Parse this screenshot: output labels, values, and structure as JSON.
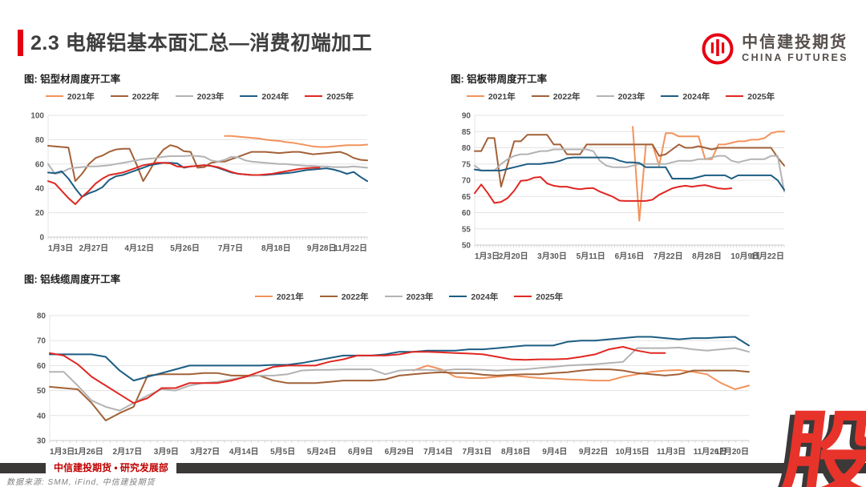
{
  "header": {
    "title": "2.3 电解铝基本面汇总—消费初端加工",
    "logo_cn": "中信建投期货",
    "logo_en": "CHINA FUTURES"
  },
  "footer": {
    "department": "中信建投期货 • 研究发展部",
    "source": "数据来源: SMM, iFind, 中信建投期货"
  },
  "watermark": "股",
  "colors": {
    "accent_red": "#E60012",
    "title_text": "#3F3F3F",
    "logo_text": "#564F4C",
    "footer_bar": "#3B3838",
    "footer_text": "#C00000",
    "source_text": "#7F7F7F",
    "watermark_red": "#E8332A",
    "grid": "#E3E3E3",
    "axis": "#C9C9C9",
    "tick_text": "#595959",
    "s2021": "#F2935C",
    "s2022": "#A26138",
    "s2023": "#B3B3B3",
    "s2024": "#1C5D83",
    "s2025": "#E02722"
  },
  "chart_data": [
    {
      "type": "line",
      "title": "图: 铝型材周度开工率",
      "ylim": [
        0,
        100
      ],
      "ytick_step": 20,
      "legend_position": "top-center",
      "x_labels": [
        "1月3日",
        "2月27日",
        "4月12日",
        "5月26日",
        "7月7日",
        "8月18日",
        "9月28日",
        "11月22日"
      ],
      "series": [
        {
          "name": "2021年",
          "color_key": "s2021",
          "values": [
            null,
            null,
            null,
            null,
            null,
            null,
            null,
            null,
            null,
            null,
            null,
            null,
            null,
            null,
            null,
            null,
            null,
            null,
            null,
            null,
            null,
            null,
            null,
            null,
            null,
            null,
            83,
            83,
            82.5,
            82,
            81.5,
            81,
            80,
            79.5,
            79,
            78,
            77.5,
            76.5,
            75.5,
            74.5,
            74,
            74,
            74.5,
            75,
            75.5,
            75.5,
            75.5,
            76
          ]
        },
        {
          "name": "2022年",
          "color_key": "s2022",
          "values": [
            75,
            74.5,
            74,
            73.5,
            46,
            52,
            60,
            65,
            67,
            70,
            72,
            72.5,
            72.5,
            60,
            46,
            55,
            65,
            72,
            75.5,
            74,
            70.5,
            70,
            57,
            57.5,
            61,
            62,
            62,
            64,
            66,
            68,
            70,
            70,
            70,
            69.5,
            69,
            69.5,
            70,
            70,
            69,
            68,
            68.5,
            69,
            69.5,
            70,
            68,
            65,
            63.5,
            63
          ]
        },
        {
          "name": "2023年",
          "color_key": "s2023",
          "values": [
            60,
            52,
            53,
            56,
            57,
            57.5,
            58,
            58,
            58.5,
            59,
            60,
            61,
            62,
            63,
            64,
            64.5,
            65,
            66,
            66.5,
            66.5,
            66.5,
            67,
            66.5,
            66,
            63,
            62,
            63.5,
            66,
            65.5,
            63,
            62,
            61.5,
            61,
            60.5,
            60,
            60,
            59.5,
            59,
            58.5,
            58.5,
            58,
            58,
            57.5,
            57.5,
            57.5,
            58,
            57.5,
            57
          ]
        },
        {
          "name": "2024年",
          "color_key": "s2024",
          "values": [
            53,
            52.5,
            54,
            48,
            40,
            33,
            36,
            38,
            41,
            47,
            50,
            51,
            53,
            55,
            57,
            59,
            60,
            61,
            61,
            60.5,
            57,
            58,
            58.5,
            59,
            58.5,
            57,
            55,
            53,
            52,
            51.5,
            51,
            51,
            51,
            51.5,
            52,
            52.5,
            53,
            54,
            55,
            55.5,
            56,
            56.5,
            55.5,
            54,
            52,
            53.5,
            49.5,
            46
          ]
        },
        {
          "name": "2025年",
          "color_key": "s2025",
          "values": [
            46,
            44,
            38,
            32,
            27,
            33,
            38,
            44,
            48,
            51,
            52,
            53,
            55,
            57,
            59,
            60,
            61,
            61,
            60.5,
            58,
            57.5,
            58,
            58.5,
            59,
            58.5,
            57.5,
            55.5,
            53.5,
            52,
            51.5,
            51,
            51,
            51.5,
            52,
            53,
            54,
            55,
            56,
            56.5,
            57,
            57,
            null,
            null,
            null,
            null,
            null,
            null,
            null
          ]
        }
      ]
    },
    {
      "type": "line",
      "title": "图: 铝板带周度开工率",
      "ylim": [
        50,
        90
      ],
      "ytick_step": 5,
      "legend_position": "top-center",
      "x_labels": [
        "1月3日",
        "2月20日",
        "3月30日",
        "5月11日",
        "6月16日",
        "7月22日",
        "8月28日",
        "10月9日",
        "11月22日"
      ],
      "series": [
        {
          "name": "2021年",
          "color_key": "s2021",
          "values": [
            null,
            null,
            null,
            null,
            null,
            null,
            null,
            null,
            null,
            null,
            null,
            null,
            null,
            null,
            null,
            null,
            null,
            null,
            null,
            null,
            null,
            null,
            null,
            null,
            86.5,
            57.5,
            81,
            81,
            74.5,
            84.5,
            84.5,
            83.5,
            83.5,
            83.5,
            83.5,
            76.5,
            76.5,
            81,
            81,
            81.5,
            82,
            82,
            82.5,
            82.5,
            83,
            84.5,
            85,
            85
          ]
        },
        {
          "name": "2022年",
          "color_key": "s2022",
          "values": [
            79,
            79,
            83,
            83,
            68,
            75,
            82,
            82,
            84,
            84,
            84,
            84,
            81,
            81,
            78,
            78,
            78,
            81,
            81,
            81,
            81,
            81,
            81,
            81,
            81,
            81,
            81,
            81,
            77.5,
            78,
            79.5,
            81,
            80,
            80,
            80.5,
            80,
            79.5,
            80,
            80,
            80,
            80,
            80,
            80,
            80,
            80,
            80,
            77,
            74.5
          ]
        },
        {
          "name": "2023年",
          "color_key": "s2023",
          "values": [
            74.5,
            73,
            73,
            73,
            75,
            76.5,
            77.5,
            78,
            78,
            78.5,
            79,
            79,
            79.5,
            79.5,
            79.5,
            79.5,
            79.5,
            79.5,
            79,
            76,
            74.5,
            74,
            74,
            74,
            74.5,
            75,
            75,
            75,
            75,
            75,
            75.5,
            76,
            76,
            76,
            76.5,
            76.5,
            77,
            77.5,
            77.5,
            76,
            75.5,
            76,
            76.5,
            76.5,
            76.5,
            77.5,
            77.5,
            66.5
          ]
        },
        {
          "name": "2024年",
          "color_key": "s2024",
          "values": [
            73.3,
            73,
            73,
            73,
            73,
            73.5,
            74,
            74.5,
            75,
            75,
            75,
            75.3,
            75.5,
            76,
            76.8,
            77,
            77,
            77,
            77,
            77,
            77,
            76.8,
            76,
            75.5,
            75.5,
            75.3,
            74,
            74,
            74,
            74,
            70.5,
            70.5,
            70.5,
            70.5,
            71,
            71.5,
            71.5,
            71.5,
            71.5,
            70.5,
            71.5,
            71.5,
            71.5,
            71.5,
            71.5,
            71.5,
            70,
            67
          ]
        },
        {
          "name": "2025年",
          "color_key": "s2025",
          "values": [
            66,
            68.7,
            66,
            63,
            63.3,
            64.5,
            66.8,
            69.8,
            70,
            70.8,
            71,
            69,
            68.3,
            68,
            68,
            67.5,
            67.2,
            67.5,
            67.6,
            66.5,
            65.7,
            64.9,
            63.7,
            63.6,
            63.6,
            63.6,
            63.6,
            64,
            65.5,
            66.5,
            67.5,
            68,
            68.3,
            68,
            68.3,
            68.5,
            68,
            67.5,
            67.3,
            67.5,
            null,
            null,
            null,
            null,
            null,
            null,
            null,
            null
          ]
        }
      ]
    },
    {
      "type": "line",
      "title": "图: 铝线缆周度开工率",
      "ylim": [
        30,
        80
      ],
      "ytick_step": 10,
      "legend_position": "top-center",
      "x_labels": [
        "1月3日",
        "1月26日",
        "2月17日",
        "3月9日",
        "3月27日",
        "4月14日",
        "5月5日",
        "5月24日",
        "6月9日",
        "6月29日",
        "7月14日",
        "7月31日",
        "8月18日",
        "9月4日",
        "9月22日",
        "10月15日",
        "11月3日",
        "11月26日",
        "12月20日"
      ],
      "series": [
        {
          "name": "2021年",
          "color_key": "s2021",
          "values": [
            null,
            null,
            null,
            null,
            null,
            null,
            null,
            null,
            null,
            null,
            null,
            null,
            null,
            null,
            null,
            null,
            null,
            null,
            null,
            null,
            null,
            null,
            null,
            null,
            null,
            null,
            58,
            60,
            58.5,
            55.5,
            55,
            55,
            55.5,
            56,
            55.5,
            55,
            54.8,
            54.5,
            54.3,
            54,
            54,
            55.5,
            56.5,
            57.5,
            58,
            58.2,
            57.5,
            56.5,
            53,
            50.5,
            52
          ]
        },
        {
          "name": "2022年",
          "color_key": "s2022",
          "values": [
            51.5,
            51,
            50.5,
            45,
            38,
            41,
            43.5,
            56,
            56.5,
            56.5,
            56.5,
            57,
            57,
            56,
            56,
            56,
            54,
            53,
            53,
            53,
            53.5,
            54,
            54,
            54,
            54.5,
            56,
            56.5,
            57,
            57.3,
            57,
            57,
            56.3,
            56,
            56.3,
            56.5,
            56.5,
            57,
            57.3,
            58,
            58.5,
            58.5,
            58,
            57,
            56.5,
            56,
            56.5,
            58,
            58,
            58,
            58,
            57.5
          ]
        },
        {
          "name": "2023年",
          "color_key": "s2023",
          "values": [
            57.5,
            57.5,
            52,
            46,
            43.5,
            42,
            45,
            48,
            50.5,
            50,
            52,
            53,
            53.5,
            54.5,
            55.5,
            56,
            56,
            56.5,
            58,
            58.3,
            58.3,
            58.5,
            58.5,
            58.5,
            56.5,
            58,
            58.3,
            58.3,
            58,
            58.5,
            58.5,
            58.3,
            58,
            58.3,
            58.5,
            59,
            59.5,
            60,
            60.3,
            60.5,
            61,
            61.5,
            67,
            67,
            67,
            67.2,
            66.5,
            66,
            66.5,
            67,
            65.5
          ]
        },
        {
          "name": "2024年",
          "color_key": "s2024",
          "values": [
            64.5,
            64.5,
            64.5,
            64.5,
            63.5,
            58,
            54,
            55.5,
            57,
            58.5,
            60,
            60,
            60,
            60,
            60,
            60,
            60.3,
            60.3,
            61,
            62,
            63,
            64,
            64,
            64,
            64.5,
            65.5,
            65.5,
            66,
            66,
            66,
            66.5,
            66.5,
            67,
            67.5,
            68,
            68,
            68,
            69.5,
            70,
            70,
            70.5,
            71,
            71.5,
            71.5,
            71,
            70.5,
            71,
            71,
            71.3,
            71.5,
            68
          ]
        },
        {
          "name": "2025年",
          "color_key": "s2025",
          "values": [
            65,
            64,
            60.5,
            55.5,
            52,
            48.5,
            45,
            47,
            51,
            51,
            53,
            53,
            53,
            54,
            55.5,
            57.5,
            59.5,
            60,
            60,
            60,
            61.5,
            62.5,
            64,
            64,
            64,
            64.5,
            65.5,
            65.5,
            65.3,
            65,
            64.8,
            64.5,
            63.5,
            62.5,
            62.3,
            62.5,
            62.5,
            62.7,
            63.5,
            64.5,
            66.5,
            67.5,
            66,
            65,
            65,
            null,
            null,
            null,
            null,
            null,
            null
          ]
        }
      ]
    }
  ]
}
